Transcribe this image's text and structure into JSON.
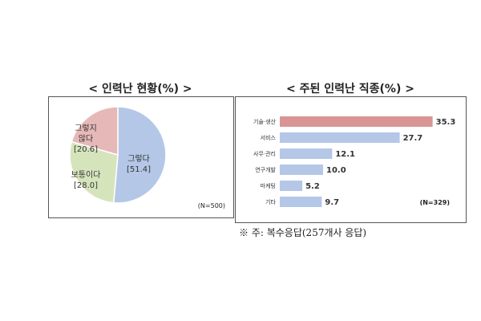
{
  "chart_data": [
    {
      "type": "pie",
      "title": "< 인력난 현황(%) >",
      "slices": [
        {
          "label": "그렇다",
          "value": 51.4,
          "color": "#b4c7e7"
        },
        {
          "label": "보통이다",
          "value": 28.0,
          "color": "#d6e4bc"
        },
        {
          "label": "그렇지 않다",
          "value": 20.6,
          "color": "#e6b9b8"
        }
      ],
      "annotation": "(N=500)"
    },
    {
      "type": "bar",
      "orientation": "horizontal",
      "title": "< 주된 인력난 직종(%) >",
      "categories": [
        "기술·생산",
        "서비스",
        "사무·관리",
        "연구개발",
        "마케팅",
        "기타"
      ],
      "values": [
        35.3,
        27.7,
        12.1,
        10.0,
        5.2,
        9.7
      ],
      "colors": [
        "#d99594",
        "#b4c7e7",
        "#b4c7e7",
        "#b4c7e7",
        "#b4c7e7",
        "#b4c7e7"
      ],
      "annotation": "(N=329)"
    }
  ],
  "footnote": "※ 주: 복수응답(257개사 응답)"
}
